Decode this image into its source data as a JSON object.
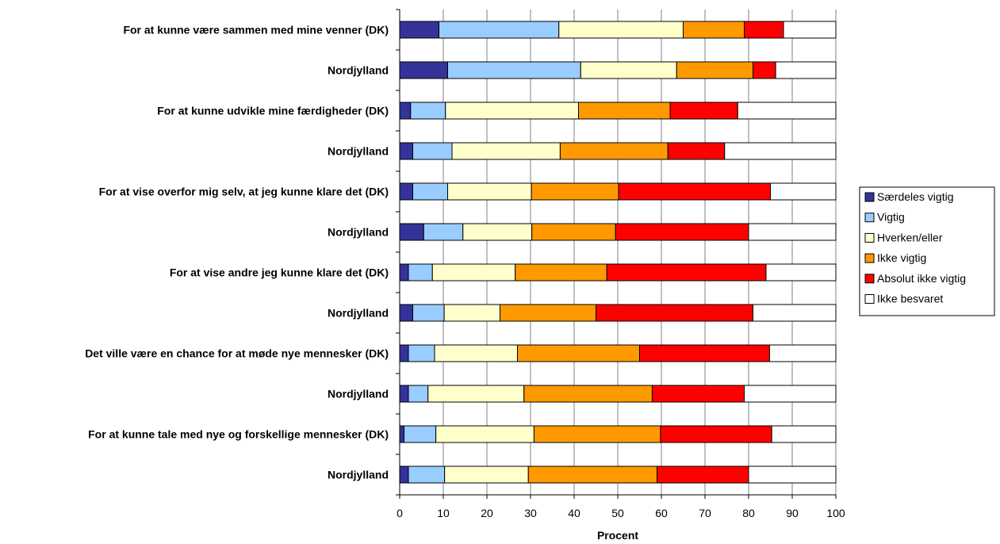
{
  "chart_data": {
    "type": "bar",
    "orientation": "horizontal",
    "stacked": true,
    "categories": [
      "For at kunne være sammen med mine venner (DK)",
      "Nordjylland",
      "For at kunne udvikle mine færdigheder (DK)",
      "Nordjylland",
      "For at vise overfor mig selv, at jeg kunne klare det (DK)",
      "Nordjylland",
      "For at vise andre jeg kunne klare det (DK)",
      "Nordjylland",
      "Det ville være en chance for at møde nye mennesker (DK)",
      "Nordjylland",
      "For at kunne tale med nye og forskellige mennesker (DK)",
      "Nordjylland"
    ],
    "series": [
      {
        "name": "Særdeles vigtig",
        "color": "#333399",
        "values": [
          9,
          11,
          2.5,
          3,
          3,
          5.5,
          2,
          3,
          2,
          2,
          1,
          2
        ]
      },
      {
        "name": "Vigtig",
        "color": "#99CCFF",
        "values": [
          27.5,
          30.5,
          8,
          9,
          8,
          9,
          5.5,
          7.2,
          6,
          4.5,
          7.3,
          8.3
        ]
      },
      {
        "name": "Hverken/eller",
        "color": "#FFFFCC",
        "values": [
          28.5,
          22,
          30.5,
          24.8,
          19.2,
          15.8,
          19,
          12.8,
          19,
          22,
          22.5,
          19.2
        ]
      },
      {
        "name": "Ikke vigtig",
        "color": "#FF9900",
        "values": [
          14,
          17.5,
          21,
          24.7,
          20,
          19.2,
          21,
          22,
          28,
          29.4,
          29,
          29.5
        ]
      },
      {
        "name": "Absolut ikke vigtig",
        "color": "#FF0000",
        "values": [
          9,
          5.2,
          15.5,
          13,
          34.8,
          30.5,
          36.5,
          36,
          29.8,
          21.1,
          25.5,
          21
        ]
      },
      {
        "name": "Ikke besvaret",
        "color": "#FFFFFF",
        "values": [
          12,
          13.8,
          22.5,
          25.5,
          15,
          20,
          16,
          19,
          15.2,
          21,
          14.7,
          20
        ]
      }
    ],
    "xlabel": "Procent",
    "ylabel": "",
    "xlim": [
      0,
      100
    ],
    "xticks": [
      "0",
      "10",
      "20",
      "30",
      "40",
      "50",
      "60",
      "70",
      "80",
      "90",
      "100"
    ],
    "grid": "vertical",
    "legend": "right"
  }
}
